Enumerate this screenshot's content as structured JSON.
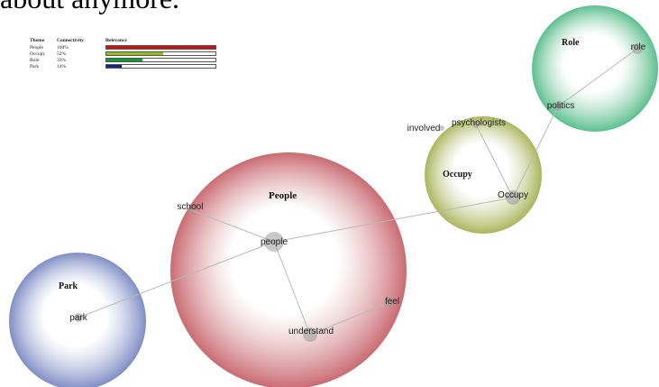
{
  "top_text": "about anymore.",
  "legend": {
    "headers": {
      "theme": "Theme",
      "connectivity": "Connectivity",
      "relevance": "Relevance"
    },
    "rows": [
      {
        "theme": "People",
        "connectivity": "100%",
        "relevance": 1.0,
        "color": "#cc1111"
      },
      {
        "theme": "Occupy",
        "connectivity": "52%",
        "relevance": 0.52,
        "color": "#99bb22"
      },
      {
        "theme": "Role",
        "connectivity": "33%",
        "relevance": 0.33,
        "color": "#119933"
      },
      {
        "theme": "Park",
        "connectivity": "14%",
        "relevance": 0.14,
        "color": "#112288"
      }
    ]
  },
  "themes": [
    {
      "id": "people",
      "title": "People",
      "color": "#c96b72"
    },
    {
      "id": "occupy",
      "title": "Occupy",
      "color": "#a9b65c"
    },
    {
      "id": "role",
      "title": "Role",
      "color": "#5cbf8e"
    },
    {
      "id": "park",
      "title": "Park",
      "color": "#7f8dc4"
    }
  ],
  "concepts": [
    {
      "id": "people",
      "label": "people",
      "theme": "people"
    },
    {
      "id": "school",
      "label": "school",
      "theme": "people"
    },
    {
      "id": "understand",
      "label": "understand",
      "theme": "people"
    },
    {
      "id": "feel",
      "label": "feel",
      "theme": "people"
    },
    {
      "id": "occupy",
      "label": "Occupy",
      "theme": "occupy"
    },
    {
      "id": "involved",
      "label": "involved",
      "theme": "occupy"
    },
    {
      "id": "psychologists",
      "label": "psychologists",
      "theme": "occupy"
    },
    {
      "id": "politics",
      "label": "politics",
      "theme": "role"
    },
    {
      "id": "role",
      "label": "role",
      "theme": "role"
    },
    {
      "id": "park",
      "label": "park",
      "theme": "park"
    }
  ],
  "links": [
    [
      "people",
      "school"
    ],
    [
      "people",
      "understand"
    ],
    [
      "understand",
      "feel"
    ],
    [
      "people",
      "park"
    ],
    [
      "people",
      "occupy"
    ],
    [
      "occupy",
      "psychologists"
    ],
    [
      "occupy",
      "politics"
    ],
    [
      "politics",
      "role"
    ]
  ]
}
